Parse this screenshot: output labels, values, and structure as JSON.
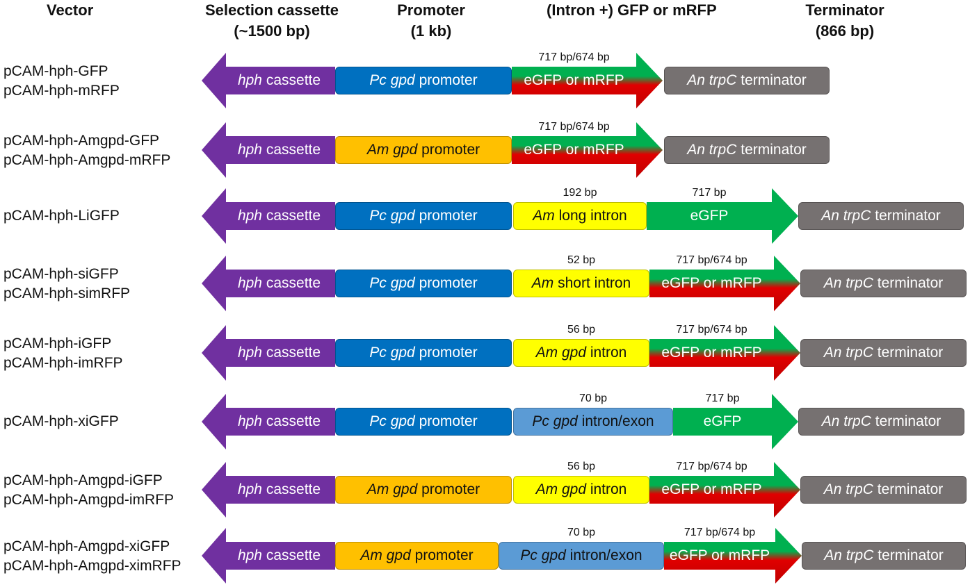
{
  "headers": {
    "vector": "Vector",
    "selection": [
      "Selection cassette",
      "(~1500 bp)"
    ],
    "promoter": [
      "Promoter",
      "(1 kb)"
    ],
    "gene": "(Intron +) GFP or mRFP",
    "terminator": [
      "Terminator",
      "(866 bp)"
    ]
  },
  "labels": {
    "hph": [
      "hph",
      " cassette"
    ],
    "pc_promoter": [
      "Pc gpd",
      " promoter"
    ],
    "am_promoter": [
      "Am gpd",
      " promoter"
    ],
    "egfp_or_mrfp": "eGFP or mRFP",
    "egfp": "eGFP",
    "terminator": [
      "An trpC",
      " terminator"
    ],
    "am_long_intron": [
      "Am",
      " long intron"
    ],
    "am_short_intron": [
      "Am",
      " short intron"
    ],
    "am_gpd_intron": [
      "Am gpd",
      " intron"
    ],
    "pc_intron_exon": [
      "Pc gpd",
      " intron/exon"
    ]
  },
  "sizes": {
    "gfp_or_mrfp": "717 bp/674 bp",
    "gfp": "717 bp",
    "long_intron": "192 bp",
    "short_intron": "52 bp",
    "gpd_intron": "56 bp",
    "intron_exon": "70 bp"
  },
  "vectors": [
    [
      "pCAM-hph-GFP",
      "pCAM-hph-mRFP"
    ],
    [
      "pCAM-hph-Amgpd-GFP",
      "pCAM-hph-Amgpd-mRFP"
    ],
    [
      "pCAM-hph-LiGFP"
    ],
    [
      "pCAM-hph-siGFP",
      "pCAM-hph-simRFP"
    ],
    [
      "pCAM-hph-iGFP",
      "pCAM-hph-imRFP"
    ],
    [
      "pCAM-hph-xiGFP"
    ],
    [
      "pCAM-hph-Amgpd-iGFP",
      "pCAM-hph-Amgpd-imRFP"
    ],
    [
      "pCAM-hph-Amgpd-xiGFP",
      "pCAM-hph-Amgpd-ximRFP"
    ]
  ],
  "colors": {
    "hph": "#7030a0",
    "pc_promoter": "#0070c0",
    "am_promoter": "#ffc000",
    "am_intron": "#ffff00",
    "pc_intron_exon": "#5b9bd5",
    "gfp": "#00b050",
    "rfp": "#e00000",
    "terminator": "#767171"
  }
}
